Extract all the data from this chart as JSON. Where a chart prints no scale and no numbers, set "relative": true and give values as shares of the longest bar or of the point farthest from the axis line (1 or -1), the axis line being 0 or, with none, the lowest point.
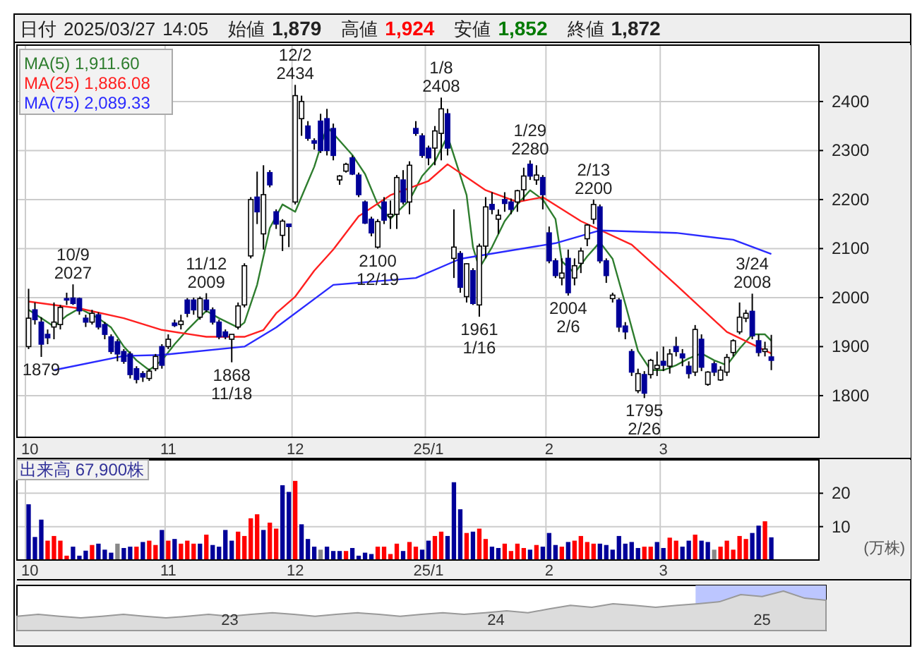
{
  "chart_data": [
    {
      "type": "candlestick",
      "title": "日付 2025/03/27 14:05 始値 1,879 高値 1,924 安値 1,852 終値 1,872",
      "categories": [
        "10",
        null,
        null,
        null,
        null,
        null,
        null,
        null,
        null,
        null,
        null,
        null,
        null,
        null,
        null,
        null,
        null,
        null,
        null,
        null,
        null,
        null,
        "11",
        null,
        null,
        null,
        null,
        null,
        null,
        null,
        null,
        null,
        null,
        null,
        null,
        null,
        null,
        null,
        null,
        null,
        null,
        null,
        "12",
        null,
        null,
        null,
        null,
        null,
        null,
        null,
        null,
        null,
        null,
        null,
        null,
        null,
        null,
        null,
        null,
        null,
        null,
        null,
        null,
        "25/1",
        null,
        null,
        null,
        null,
        null,
        null,
        null,
        null,
        null,
        null,
        null,
        null,
        null,
        null,
        null,
        null,
        null,
        null,
        "2",
        null,
        null,
        null,
        null,
        null,
        null,
        null,
        null,
        null,
        null,
        null,
        null,
        null,
        null,
        null,
        null,
        null,
        "3",
        null,
        null,
        null,
        null,
        null,
        null,
        null,
        null,
        null,
        null,
        null,
        null,
        null,
        null,
        null,
        null,
        null,
        null,
        null,
        null,
        null,
        null,
        null,
        null
      ],
      "ohlc": [
        [
          1900,
          2018,
          1895,
          1958
        ],
        [
          1975,
          1990,
          1945,
          1955
        ],
        [
          1950,
          1960,
          1879,
          1905
        ],
        [
          1925,
          1935,
          1905,
          1918
        ],
        [
          1940,
          1990,
          1915,
          1950
        ],
        [
          1945,
          1985,
          1935,
          1980
        ],
        [
          1998,
          2010,
          1985,
          1995
        ],
        [
          1999,
          2027,
          1985,
          1988
        ],
        [
          1998,
          2000,
          1965,
          1973
        ],
        [
          1958,
          1965,
          1940,
          1950
        ],
        [
          1950,
          1975,
          1945,
          1968
        ],
        [
          1965,
          1970,
          1935,
          1940
        ],
        [
          1945,
          1950,
          1915,
          1925
        ],
        [
          1920,
          1925,
          1885,
          1890
        ],
        [
          1910,
          1915,
          1870,
          1885
        ],
        [
          1890,
          1895,
          1865,
          1870
        ],
        [
          1885,
          1890,
          1835,
          1843
        ],
        [
          1855,
          1860,
          1825,
          1833
        ],
        [
          1845,
          1850,
          1828,
          1838
        ],
        [
          1835,
          1855,
          1830,
          1850
        ],
        [
          1855,
          1885,
          1850,
          1880
        ],
        [
          1900,
          1905,
          1855,
          1862
        ],
        [
          1900,
          1925,
          1895,
          1915
        ],
        [
          1948,
          1955,
          1940,
          1943
        ],
        [
          1945,
          1965,
          1935,
          1952
        ],
        [
          1995,
          1999,
          1960,
          1968
        ],
        [
          1995,
          2000,
          1965,
          1975
        ],
        [
          1960,
          2002,
          1955,
          1998
        ],
        [
          1995,
          2009,
          1970,
          1975
        ],
        [
          1975,
          1980,
          1945,
          1950
        ],
        [
          1950,
          1955,
          1915,
          1920
        ],
        [
          1930,
          1935,
          1915,
          1920
        ],
        [
          1915,
          1925,
          1868,
          1925
        ],
        [
          1940,
          1990,
          1935,
          1983
        ],
        [
          1985,
          2070,
          1980,
          2065
        ],
        [
          2085,
          2205,
          2080,
          2200
        ],
        [
          2205,
          2257,
          2150,
          2175
        ],
        [
          2130,
          2270,
          2098,
          2210
        ],
        [
          2255,
          2260,
          2225,
          2230
        ],
        [
          2175,
          2180,
          2140,
          2150
        ],
        [
          2127,
          2160,
          2095,
          2156
        ],
        [
          2150,
          2150,
          2103,
          2145
        ],
        [
          2195,
          2434,
          2190,
          2412
        ],
        [
          2365,
          2412,
          2330,
          2400
        ],
        [
          2350,
          2360,
          2320,
          2325
        ],
        [
          2320,
          2325,
          2302,
          2315
        ],
        [
          2360,
          2375,
          2295,
          2300
        ],
        [
          2365,
          2385,
          2290,
          2300
        ],
        [
          2345,
          2355,
          2280,
          2290
        ],
        [
          2240,
          2250,
          2230,
          2248
        ],
        [
          2258,
          2275,
          2255,
          2272
        ],
        [
          2285,
          2290,
          2250,
          2252
        ],
        [
          2250,
          2255,
          2205,
          2210
        ],
        [
          2195,
          2198,
          2150,
          2152
        ],
        [
          2160,
          2165,
          2125,
          2132
        ],
        [
          2103,
          2160,
          2100,
          2155
        ],
        [
          2195,
          2205,
          2150,
          2158
        ],
        [
          2165,
          2198,
          2140,
          2170
        ],
        [
          2170,
          2250,
          2140,
          2245
        ],
        [
          2240,
          2260,
          2190,
          2195
        ],
        [
          2195,
          2278,
          2170,
          2270
        ],
        [
          2345,
          2360,
          2330,
          2335
        ],
        [
          2330,
          2335,
          2285,
          2290
        ],
        [
          2305,
          2310,
          2270,
          2285
        ],
        [
          2305,
          2350,
          2270,
          2340
        ],
        [
          2335,
          2408,
          2280,
          2385
        ],
        [
          2375,
          2385,
          2290,
          2305
        ],
        [
          2080,
          2180,
          2040,
          2103
        ],
        [
          2090,
          2095,
          2010,
          2021
        ],
        [
          2002,
          2070,
          1990,
          2069
        ],
        [
          2055,
          2060,
          1985,
          1988
        ],
        [
          1985,
          2110,
          1961,
          2105
        ],
        [
          2105,
          2205,
          2080,
          2185
        ],
        [
          2190,
          2215,
          2170,
          2180
        ],
        [
          2160,
          2180,
          2130,
          2168
        ],
        [
          2200,
          2215,
          2175,
          2192
        ],
        [
          2195,
          2202,
          2170,
          2180
        ],
        [
          2195,
          2220,
          2175,
          2218
        ],
        [
          2220,
          2265,
          2198,
          2248
        ],
        [
          2272,
          2280,
          2240,
          2248
        ],
        [
          2240,
          2270,
          2230,
          2250
        ],
        [
          2245,
          2250,
          2180,
          2210
        ],
        [
          2132,
          2145,
          2070,
          2075
        ],
        [
          2075,
          2080,
          2040,
          2045
        ],
        [
          2040,
          2080,
          2025,
          2050
        ],
        [
          2080,
          2098,
          2004,
          2010
        ],
        [
          2040,
          2080,
          2025,
          2065
        ],
        [
          2070,
          2102,
          2050,
          2095
        ],
        [
          2120,
          2150,
          2105,
          2148
        ],
        [
          2160,
          2200,
          2150,
          2190
        ],
        [
          2185,
          2190,
          2070,
          2075
        ],
        [
          2075,
          2080,
          2030,
          2045
        ],
        [
          1998,
          2010,
          1990,
          2005
        ],
        [
          1995,
          1999,
          1930,
          1940
        ],
        [
          1942,
          1950,
          1915,
          1930
        ],
        [
          1890,
          1895,
          1840,
          1848
        ],
        [
          1810,
          1855,
          1805,
          1845
        ],
        [
          1843,
          1850,
          1795,
          1805
        ],
        [
          1843,
          1875,
          1835,
          1872
        ],
        [
          1855,
          1890,
          1840,
          1862
        ],
        [
          1870,
          1900,
          1850,
          1862
        ],
        [
          1860,
          1895,
          1845,
          1885
        ],
        [
          1900,
          1920,
          1880,
          1890
        ],
        [
          1885,
          1895,
          1860,
          1877
        ],
        [
          1860,
          1870,
          1835,
          1845
        ],
        [
          1848,
          1944,
          1840,
          1935
        ],
        [
          1915,
          1925,
          1850,
          1858
        ],
        [
          1823,
          1850,
          1820,
          1848
        ],
        [
          1865,
          1870,
          1840,
          1848
        ],
        [
          1832,
          1860,
          1830,
          1852
        ],
        [
          1848,
          1885,
          1840,
          1878
        ],
        [
          1888,
          1915,
          1880,
          1912
        ],
        [
          1930,
          1990,
          1925,
          1960
        ],
        [
          1958,
          1975,
          1950,
          1968
        ],
        [
          1972,
          2008,
          1915,
          1922
        ],
        [
          1912,
          1925,
          1880,
          1888
        ],
        [
          1890,
          1910,
          1880,
          1895
        ],
        [
          1879,
          1924,
          1852,
          1872
        ],
        null,
        null,
        null,
        null,
        null,
        null,
        null
      ],
      "colors": [
        "#ffffff",
        "#000099",
        "#000099",
        "#000099",
        "#ffffff",
        "#ffffff",
        "#000099",
        "#000099",
        "#000099",
        "#000099",
        "#ffffff",
        "#000099",
        "#000099",
        "#000099",
        "#000099",
        "#000099",
        "#000099",
        "#000099",
        "#000099",
        "#ffffff",
        "#ffffff",
        "#000099",
        "#ffffff",
        "#000099",
        "#ffffff",
        "#000099",
        "#000099",
        "#ffffff",
        "#000099",
        "#000099",
        "#000099",
        "#000099",
        "#ffffff",
        "#ffffff",
        "#ffffff",
        "#ffffff",
        "#000099",
        "#ffffff",
        "#000099",
        "#000099",
        "#ffffff",
        "#000099",
        "#ffffff",
        "#ffffff",
        "#000099",
        "#000099",
        "#000099",
        "#000099",
        "#000099",
        "#ffffff",
        "#ffffff",
        "#000099",
        "#000099",
        "#000099",
        "#000099",
        "#ffffff",
        "#000099",
        "#ffffff",
        "#ffffff",
        "#000099",
        "#ffffff",
        "#000099",
        "#000099",
        "#000099",
        "#ffffff",
        "#ffffff",
        "#000099",
        "#ffffff",
        "#000099",
        "#ffffff",
        "#000099",
        "#ffffff",
        "#ffffff",
        "#000099",
        "#ffffff",
        "#000099",
        "#000099",
        "#ffffff",
        "#ffffff",
        "#000099",
        "#ffffff",
        "#000099",
        "#000099",
        "#000099",
        "#ffffff",
        "#000099",
        "#ffffff",
        "#ffffff",
        "#ffffff",
        "#ffffff",
        "#000099",
        "#000099",
        "#ffffff",
        "#000099",
        "#000099",
        "#000099",
        "#ffffff",
        "#000099",
        "#ffffff",
        "#ffffff",
        "#000099",
        "#ffffff",
        "#000099",
        "#000099",
        "#000099",
        "#ffffff",
        "#000099",
        "#ffffff",
        "#000099",
        "#ffffff",
        "#ffffff",
        "#ffffff",
        "#ffffff",
        "#ffffff",
        "#000099",
        "#000099",
        "#ffffff",
        "#000099",
        null,
        null,
        null,
        null,
        null,
        null,
        null
      ],
      "series": [
        {
          "name": "MA(5) 1,911.60",
          "type": "line",
          "color": "#2e7d2e",
          "values": [
            1975,
            null,
            1958,
            null,
            1941,
            null,
            1963,
            null,
            1978,
            null,
            null,
            1958,
            null,
            1939,
            null,
            1900,
            null,
            1872,
            null,
            1852,
            null,
            1872,
            null,
            1905,
            null,
            1934,
            null,
            null,
            1973,
            null,
            1958,
            null,
            null,
            1939,
            1949,
            null,
            2026,
            null,
            2142,
            null,
            2190,
            null,
            2175,
            null,
            null,
            2267,
            null,
            2349,
            null,
            2320,
            null,
            2291,
            null,
            2252,
            null,
            2190,
            null,
            2161,
            null,
            null,
            2199,
            null,
            2248,
            null,
            2277,
            null,
            2330,
            null,
            null,
            2209,
            2103,
            2060,
            null,
            2103,
            null,
            2156,
            null,
            2190,
            null,
            2219,
            null,
            2200,
            null,
            2160,
            2074,
            null,
            2050,
            null,
            2084,
            null,
            2113,
            null,
            2079,
            null,
            1987,
            null,
            1891,
            null,
            1852,
            null,
            1852,
            null,
            1862,
            null,
            1876,
            null,
            1886,
            null,
            1872,
            null,
            1862,
            null,
            1896,
            null,
            1925,
            null,
            1925,
            1912,
            null,
            null,
            null,
            null,
            null,
            null,
            null
          ]
        },
        {
          "name": "MA(25) 1,886.08",
          "type": "line",
          "color": "#ff2020",
          "values": [
            1992,
            null,
            null,
            null,
            null,
            null,
            null,
            null,
            1978,
            null,
            null,
            null,
            null,
            null,
            null,
            1958,
            null,
            null,
            null,
            null,
            null,
            1934,
            null,
            null,
            null,
            null,
            null,
            null,
            1920,
            null,
            null,
            null,
            null,
            null,
            1920,
            null,
            null,
            1934,
            null,
            1968,
            null,
            null,
            2002,
            null,
            null,
            2055,
            null,
            null,
            2098,
            null,
            null,
            null,
            2166,
            null,
            null,
            null,
            null,
            2209,
            null,
            null,
            null,
            null,
            null,
            2238,
            null,
            null,
            2272,
            null,
            null,
            null,
            null,
            null,
            2219,
            null,
            null,
            null,
            null,
            2195,
            null,
            null,
            null,
            2205,
            null,
            null,
            null,
            null,
            null,
            2156,
            null,
            null,
            null,
            null,
            null,
            null,
            null,
            2108,
            null,
            null,
            null,
            null,
            null,
            null,
            2026,
            null,
            null,
            null,
            null,
            null,
            null,
            null,
            1930,
            null,
            null,
            null,
            null,
            null,
            null,
            1886,
            null,
            null,
            null,
            null,
            null,
            null,
            null
          ]
        },
        {
          "name": "MA(75) 2,089.33",
          "type": "line",
          "color": "#2a2aff",
          "values": [
            null,
            null,
            null,
            null,
            1852,
            null,
            null,
            null,
            null,
            null,
            null,
            null,
            null,
            null,
            null,
            1881,
            null,
            null,
            null,
            null,
            null,
            1883,
            null,
            null,
            null,
            null,
            null,
            null,
            null,
            null,
            null,
            null,
            null,
            null,
            1900,
            null,
            null,
            null,
            null,
            1939,
            null,
            null,
            null,
            null,
            null,
            null,
            null,
            null,
            2026,
            null,
            null,
            null,
            null,
            null,
            null,
            null,
            null,
            null,
            null,
            null,
            null,
            2040,
            null,
            null,
            null,
            null,
            null,
            null,
            2079,
            null,
            null,
            null,
            null,
            null,
            null,
            null,
            null,
            null,
            null,
            null,
            null,
            null,
            null,
            2111,
            null,
            null,
            null,
            null,
            null,
            null,
            2137,
            null,
            null,
            null,
            null,
            null,
            null,
            null,
            null,
            null,
            null,
            null,
            2132,
            null,
            null,
            null,
            null,
            null,
            null,
            null,
            null,
            2118,
            null,
            null,
            null,
            null,
            null,
            2089,
            null,
            null,
            null,
            null,
            null,
            null,
            null
          ]
        }
      ],
      "ylim": [
        1715,
        2515
      ],
      "yticks": [
        1800,
        1900,
        2000,
        2100,
        2200,
        2300,
        2400
      ],
      "grid": true,
      "legend": "top left",
      "annotations": [
        {
          "text": "1879",
          "y": 1879
        },
        {
          "text": "10/9 2027",
          "y": 2027
        },
        {
          "text": "11/12 2009",
          "y": 2009
        },
        {
          "text": "1868 11/18",
          "y": 1868
        },
        {
          "text": "12/2 2434",
          "y": 2434
        },
        {
          "text": "2100 12/19",
          "y": 2100
        },
        {
          "text": "1/8 2408",
          "y": 2408
        },
        {
          "text": "1961 1/16",
          "y": 1961
        },
        {
          "text": "1/29 2280",
          "y": 2280
        },
        {
          "text": "2/13 2200",
          "y": 2200
        },
        {
          "text": "2004 2/6",
          "y": 2004
        },
        {
          "text": "1795 2/26",
          "y": 1795
        },
        {
          "text": "3/24 2008",
          "y": 2008
        }
      ]
    },
    {
      "type": "bar",
      "title": "出来高 67,900株",
      "ylabel": "(万株)",
      "categories": [
        "10",
        null,
        null,
        null,
        null,
        null,
        null,
        null,
        null,
        null,
        null,
        null,
        null,
        null,
        null,
        null,
        null,
        null,
        null,
        null,
        null,
        null,
        "11",
        null,
        null,
        null,
        null,
        null,
        null,
        null,
        null,
        null,
        null,
        null,
        null,
        null,
        null,
        null,
        null,
        null,
        null,
        null,
        "12",
        null,
        null,
        null,
        null,
        null,
        null,
        null,
        null,
        null,
        null,
        null,
        null,
        null,
        null,
        null,
        null,
        null,
        null,
        null,
        null,
        "25/1",
        null,
        null,
        null,
        null,
        null,
        null,
        null,
        null,
        null,
        null,
        null,
        null,
        null,
        null,
        null,
        null,
        null,
        null,
        "2",
        null,
        null,
        null,
        null,
        null,
        null,
        null,
        null,
        null,
        null,
        null,
        null,
        null,
        null,
        null,
        null,
        null,
        "3",
        null,
        null,
        null,
        null,
        null,
        null,
        null,
        null,
        null,
        null,
        null,
        null,
        null,
        null,
        null,
        null,
        null,
        null,
        null,
        null,
        null,
        null,
        null,
        null
      ],
      "values": [
        16.7,
        6.9,
        12.1,
        5.8,
        7.2,
        5.8,
        1.3,
        4.0,
        1.3,
        2.8,
        4.5,
        4.9,
        3.1,
        2.2,
        4.9,
        3.6,
        4.0,
        4.0,
        5.4,
        5.8,
        4.5,
        9.0,
        5.8,
        6.3,
        4.9,
        5.8,
        4.9,
        4.9,
        7.6,
        4.5,
        4.0,
        9.0,
        5.8,
        8.5,
        7.2,
        12.5,
        13.7,
        9.0,
        11.2,
        9.4,
        22.4,
        20.4,
        23.7,
        10.7,
        6.3,
        4.0,
        3.1,
        4.0,
        2.7,
        2.7,
        2.7,
        3.6,
        1.3,
        2.2,
        1.8,
        4.0,
        4.0,
        1.8,
        4.9,
        2.7,
        5.4,
        4.0,
        3.1,
        5.8,
        7.2,
        8.5,
        7.2,
        23.3,
        15.2,
        8.1,
        8.5,
        9.4,
        6.3,
        4.0,
        3.6,
        4.9,
        2.7,
        4.9,
        3.6,
        3.1,
        4.5,
        4.0,
        8.1,
        4.5,
        4.0,
        5.4,
        5.8,
        7.2,
        5.4,
        4.9,
        4.9,
        4.5,
        3.1,
        7.2,
        4.9,
        5.4,
        3.6,
        4.0,
        4.0,
        5.4,
        3.6,
        6.7,
        5.8,
        4.0,
        5.8,
        7.6,
        5.8,
        5.4,
        3.1,
        4.0,
        5.8,
        3.1,
        7.2,
        6.3,
        8.1,
        10.3,
        11.6,
        6.8,
        null,
        null,
        null,
        null,
        null,
        null,
        null
      ],
      "colors": [
        "#000099",
        "#000099",
        "#000099",
        "#ff0000",
        "#ff0000",
        "#ff0000",
        "#ff0000",
        "#000099",
        "#000099",
        "#000099",
        "#ff0000",
        "#000099",
        "#000099",
        "#000099",
        "#888888",
        "#000099",
        "#000099",
        "#ff0000",
        "#000099",
        "#ff0000",
        "#ff0000",
        "#000099",
        "#ff0000",
        "#000099",
        "#ff0000",
        "#ff0000",
        "#ff0000",
        "#000099",
        "#ff0000",
        "#000099",
        "#000099",
        "#000099",
        "#000099",
        "#ff0000",
        "#ff0000",
        "#ff0000",
        "#ff0000",
        "#000099",
        "#ff0000",
        "#ff0000",
        "#000099",
        "#000099",
        "#ff0000",
        "#000099",
        "#000099",
        "#000099",
        "#888888",
        "#000099",
        "#000099",
        "#000099",
        "#ff0000",
        "#000099",
        "#000099",
        "#000099",
        "#000099",
        "#ff0000",
        "#ff0000",
        "#ff0000",
        "#ff0000",
        "#000099",
        "#ff0000",
        "#ff0000",
        "#000099",
        "#000099",
        "#ff0000",
        "#ff0000",
        "#000099",
        "#000099",
        "#000099",
        "#ff0000",
        "#000099",
        "#ff0000",
        "#ff0000",
        "#000099",
        "#000099",
        "#ff0000",
        "#ff0000",
        "#ff0000",
        "#ff0000",
        "#000099",
        "#ff0000",
        "#000099",
        "#000099",
        "#000099",
        "#ff0000",
        "#000099",
        "#ff0000",
        "#ff0000",
        "#ff0000",
        "#ff0000",
        "#000099",
        "#000099",
        "#000099",
        "#000099",
        "#000099",
        "#000099",
        "#000099",
        "#ff0000",
        "#ff0000",
        "#000099",
        "#000099",
        "#ff0000",
        "#ff0000",
        "#000099",
        "#000099",
        "#ff0000",
        "#000099",
        "#000099",
        "#888888",
        "#ff0000",
        "#ff0000",
        "#ff0000",
        "#ff0000",
        "#ff0000",
        "#000099",
        "#000099",
        "#ff0000",
        "#000099",
        null,
        null,
        null,
        null,
        null,
        null,
        null
      ],
      "ylim": [
        0,
        30
      ],
      "yticks": [
        10,
        20
      ],
      "grid": true
    },
    {
      "type": "area",
      "relative": true,
      "color": "#999999",
      "x": [
        2022.2,
        2022.28,
        2022.36,
        2022.44,
        2022.52,
        2022.6,
        2022.68,
        2022.76,
        2022.84,
        2022.92,
        2023.0,
        2023.08,
        2023.16,
        2023.24,
        2023.32,
        2023.4,
        2023.48,
        2023.56,
        2023.64,
        2023.72,
        2023.8,
        2023.88,
        2023.96,
        2024.04,
        2024.12,
        2024.2,
        2024.28,
        2024.36,
        2024.44,
        2024.52,
        2024.6,
        2024.68,
        2024.76,
        2024.84,
        2024.92,
        2025.0,
        2025.08,
        2025.16,
        2025.24
      ],
      "values": [
        0.36,
        0.41,
        0.36,
        0.32,
        0.36,
        0.41,
        0.36,
        0.32,
        0.36,
        0.41,
        0.36,
        0.41,
        0.45,
        0.41,
        0.36,
        0.41,
        0.45,
        0.41,
        0.36,
        0.41,
        0.45,
        0.41,
        0.45,
        0.5,
        0.45,
        0.55,
        0.64,
        0.59,
        0.68,
        0.64,
        0.59,
        0.64,
        0.68,
        0.73,
        0.91,
        0.86,
        1,
        0.82,
        0.77
      ],
      "xlim": [
        2022.2,
        2025.24
      ],
      "xticks": [
        {
          "value": 2023,
          "label": "23"
        },
        {
          "value": 2024,
          "label": "24"
        },
        {
          "value": 2025,
          "label": "25"
        }
      ],
      "bands": [
        {
          "axis": "x",
          "from": 2024.75,
          "to": 2025.24,
          "color": "#bcc6ff"
        }
      ]
    }
  ]
}
